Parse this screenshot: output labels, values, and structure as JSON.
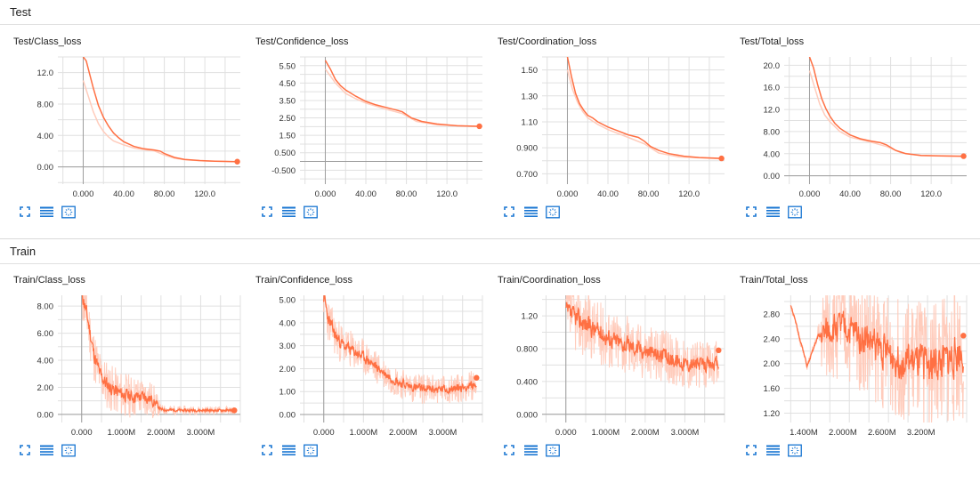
{
  "sections": [
    {
      "title": "Test"
    },
    {
      "title": "Train"
    }
  ],
  "colors": {
    "line": "#ff7043",
    "line_light": "#ffccbc",
    "grid": "#e0e0e0",
    "axis": "#9e9e9e",
    "icon": "#1976d2"
  },
  "toolbar_icons": [
    "fullscreen-icon",
    "data-table-icon",
    "fit-domain-icon"
  ],
  "chart_data": [
    {
      "title": "Test/Class_loss",
      "type": "line",
      "section": "Test",
      "xlim": [
        -25,
        155
      ],
      "ylim": [
        -2.2,
        14.0
      ],
      "xticks": [
        0,
        40,
        80,
        120
      ],
      "xticklabels": [
        "0.000",
        "40.00",
        "80.00",
        "120.0"
      ],
      "yticks": [
        0,
        4,
        8,
        12
      ],
      "yticklabels": [
        "0.00",
        "4.00",
        "8.00",
        "12.0"
      ],
      "smoothed": [
        [
          0,
          14
        ],
        [
          3,
          13.5
        ],
        [
          6,
          12
        ],
        [
          10,
          10
        ],
        [
          15,
          7.8
        ],
        [
          20,
          6.3
        ],
        [
          25,
          5.2
        ],
        [
          30,
          4.3
        ],
        [
          35,
          3.7
        ],
        [
          40,
          3.2
        ],
        [
          50,
          2.6
        ],
        [
          60,
          2.3
        ],
        [
          70,
          2.15
        ],
        [
          76,
          2.0
        ],
        [
          80,
          1.7
        ],
        [
          90,
          1.2
        ],
        [
          100,
          0.95
        ],
        [
          115,
          0.8
        ],
        [
          130,
          0.72
        ],
        [
          145,
          0.68
        ],
        [
          152,
          0.66
        ]
      ],
      "raw": [
        [
          0,
          11
        ],
        [
          5,
          9
        ],
        [
          10,
          7
        ],
        [
          15,
          5.5
        ],
        [
          20,
          4.5
        ],
        [
          25,
          3.8
        ],
        [
          30,
          3.3
        ],
        [
          40,
          2.8
        ],
        [
          50,
          2.4
        ],
        [
          60,
          2.2
        ],
        [
          70,
          2.05
        ],
        [
          80,
          1.5
        ],
        [
          90,
          1.1
        ],
        [
          100,
          0.9
        ],
        [
          120,
          0.75
        ],
        [
          152,
          0.66
        ]
      ],
      "end_point": [
        152,
        0.66
      ]
    },
    {
      "title": "Test/Confidence_loss",
      "type": "line",
      "section": "Test",
      "xlim": [
        -25,
        155
      ],
      "ylim": [
        -1.3,
        6.0
      ],
      "xticks": [
        0,
        40,
        80,
        120
      ],
      "xticklabels": [
        "0.000",
        "40.00",
        "80.00",
        "120.0"
      ],
      "yticks": [
        -0.5,
        0.5,
        1.5,
        2.5,
        3.5,
        4.5,
        5.5
      ],
      "yticklabels": [
        "-0.500",
        "0.500",
        "1.50",
        "2.50",
        "3.50",
        "4.50",
        "5.50"
      ],
      "smoothed": [
        [
          0,
          5.8
        ],
        [
          5,
          5.3
        ],
        [
          10,
          4.7
        ],
        [
          15,
          4.35
        ],
        [
          20,
          4.1
        ],
        [
          30,
          3.75
        ],
        [
          40,
          3.45
        ],
        [
          50,
          3.25
        ],
        [
          60,
          3.1
        ],
        [
          70,
          2.95
        ],
        [
          76,
          2.85
        ],
        [
          85,
          2.5
        ],
        [
          95,
          2.3
        ],
        [
          110,
          2.15
        ],
        [
          130,
          2.05
        ],
        [
          152,
          2.02
        ]
      ],
      "raw": [
        [
          0,
          5.3
        ],
        [
          5,
          4.9
        ],
        [
          10,
          4.5
        ],
        [
          20,
          3.9
        ],
        [
          30,
          3.6
        ],
        [
          40,
          3.35
        ],
        [
          60,
          3.0
        ],
        [
          76,
          2.75
        ],
        [
          90,
          2.3
        ],
        [
          110,
          2.1
        ],
        [
          152,
          2.0
        ]
      ],
      "end_point": [
        152,
        2.02
      ]
    },
    {
      "title": "Test/Coordination_loss",
      "type": "line",
      "section": "Test",
      "xlim": [
        -25,
        155
      ],
      "ylim": [
        0.62,
        1.6
      ],
      "xticks": [
        0,
        40,
        80,
        120
      ],
      "xticklabels": [
        "0.000",
        "40.00",
        "80.00",
        "120.0"
      ],
      "yticks": [
        0.7,
        0.9,
        1.1,
        1.3,
        1.5
      ],
      "yticklabels": [
        "0.700",
        "0.900",
        "1.10",
        "1.30",
        "1.50"
      ],
      "smoothed": [
        [
          0,
          1.6
        ],
        [
          4,
          1.45
        ],
        [
          8,
          1.32
        ],
        [
          12,
          1.24
        ],
        [
          16,
          1.19
        ],
        [
          20,
          1.15
        ],
        [
          25,
          1.13
        ],
        [
          30,
          1.1
        ],
        [
          40,
          1.06
        ],
        [
          50,
          1.03
        ],
        [
          60,
          1.0
        ],
        [
          70,
          0.98
        ],
        [
          76,
          0.95
        ],
        [
          82,
          0.91
        ],
        [
          90,
          0.88
        ],
        [
          100,
          0.855
        ],
        [
          115,
          0.835
        ],
        [
          130,
          0.825
        ],
        [
          145,
          0.82
        ],
        [
          152,
          0.818
        ]
      ],
      "raw": [
        [
          0,
          1.5
        ],
        [
          5,
          1.35
        ],
        [
          10,
          1.25
        ],
        [
          15,
          1.18
        ],
        [
          20,
          1.13
        ],
        [
          30,
          1.08
        ],
        [
          40,
          1.04
        ],
        [
          60,
          0.98
        ],
        [
          76,
          0.93
        ],
        [
          90,
          0.86
        ],
        [
          110,
          0.83
        ],
        [
          152,
          0.815
        ]
      ],
      "end_point": [
        152,
        0.818
      ]
    },
    {
      "title": "Test/Total_loss",
      "type": "line",
      "section": "Test",
      "xlim": [
        -25,
        155
      ],
      "ylim": [
        -1.5,
        21.5
      ],
      "xticks": [
        0,
        40,
        80,
        120
      ],
      "xticklabels": [
        "0.000",
        "40.00",
        "80.00",
        "120.0"
      ],
      "yticks": [
        0,
        4,
        8,
        12,
        16,
        20
      ],
      "yticklabels": [
        "0.00",
        "4.00",
        "8.00",
        "12.0",
        "16.0",
        "20.0"
      ],
      "smoothed": [
        [
          0,
          21.5
        ],
        [
          4,
          19.5
        ],
        [
          8,
          16.5
        ],
        [
          12,
          14
        ],
        [
          16,
          12.2
        ],
        [
          20,
          10.8
        ],
        [
          25,
          9.5
        ],
        [
          30,
          8.6
        ],
        [
          40,
          7.4
        ],
        [
          50,
          6.7
        ],
        [
          60,
          6.3
        ],
        [
          70,
          6.0
        ],
        [
          76,
          5.6
        ],
        [
          85,
          4.6
        ],
        [
          95,
          4.0
        ],
        [
          110,
          3.7
        ],
        [
          130,
          3.6
        ],
        [
          152,
          3.55
        ]
      ],
      "raw": [
        [
          0,
          19
        ],
        [
          5,
          16
        ],
        [
          10,
          13
        ],
        [
          15,
          11
        ],
        [
          20,
          9.8
        ],
        [
          30,
          8.0
        ],
        [
          40,
          7.0
        ],
        [
          60,
          6.1
        ],
        [
          76,
          5.3
        ],
        [
          90,
          4.2
        ],
        [
          110,
          3.65
        ],
        [
          152,
          3.5
        ]
      ],
      "end_point": [
        152,
        3.55
      ]
    },
    {
      "title": "Train/Class_loss",
      "type": "line",
      "section": "Train",
      "xlim": [
        -0.6,
        4.0
      ],
      "ylim": [
        -0.6,
        8.8
      ],
      "xticks": [
        0,
        1,
        2,
        3
      ],
      "xticklabels": [
        "0.000",
        "1.000M",
        "2.000M",
        "3.000M"
      ],
      "yticks": [
        0,
        2,
        4,
        6,
        8
      ],
      "yticklabels": [
        "0.00",
        "2.00",
        "4.00",
        "6.00",
        "8.00"
      ],
      "noisy": true,
      "seed": 11,
      "trend": [
        [
          0.0,
          9
        ],
        [
          0.15,
          7
        ],
        [
          0.3,
          4.5
        ],
        [
          0.45,
          3.0
        ],
        [
          0.6,
          2.3
        ],
        [
          0.8,
          1.8
        ],
        [
          1.0,
          1.5
        ],
        [
          1.3,
          1.3
        ],
        [
          1.6,
          1.3
        ],
        [
          1.8,
          1.0
        ],
        [
          2.0,
          0.35
        ],
        [
          2.5,
          0.3
        ],
        [
          3.0,
          0.3
        ],
        [
          3.5,
          0.3
        ],
        [
          3.85,
          0.3
        ]
      ],
      "noise_amp": [
        [
          0,
          1.5
        ],
        [
          1.8,
          1.0
        ],
        [
          2.0,
          0.25
        ],
        [
          3.85,
          0.2
        ]
      ],
      "end_point": [
        3.85,
        0.3
      ]
    },
    {
      "title": "Train/Confidence_loss",
      "type": "line",
      "section": "Train",
      "xlim": [
        -0.6,
        4.0
      ],
      "ylim": [
        -0.35,
        5.2
      ],
      "xticks": [
        0,
        1,
        2,
        3
      ],
      "xticklabels": [
        "0.000",
        "1.000M",
        "2.000M",
        "3.000M"
      ],
      "yticks": [
        0,
        1,
        2,
        3,
        4,
        5
      ],
      "yticklabels": [
        "0.00",
        "1.00",
        "2.00",
        "3.00",
        "4.00",
        "5.00"
      ],
      "noisy": true,
      "seed": 23,
      "trend": [
        [
          0.0,
          5.2
        ],
        [
          0.1,
          4.2
        ],
        [
          0.3,
          3.4
        ],
        [
          0.5,
          3.0
        ],
        [
          0.8,
          2.7
        ],
        [
          1.0,
          2.5
        ],
        [
          1.3,
          2.1
        ],
        [
          1.6,
          1.7
        ],
        [
          1.9,
          1.4
        ],
        [
          2.2,
          1.2
        ],
        [
          2.6,
          1.1
        ],
        [
          3.0,
          1.1
        ],
        [
          3.4,
          1.15
        ],
        [
          3.85,
          1.3
        ]
      ],
      "noise_amp": [
        [
          0,
          0.7
        ],
        [
          1.5,
          0.5
        ],
        [
          3.85,
          0.45
        ]
      ],
      "end_point": [
        3.85,
        1.6
      ]
    },
    {
      "title": "Train/Coordination_loss",
      "type": "line",
      "section": "Train",
      "xlim": [
        -0.6,
        4.0
      ],
      "ylim": [
        -0.1,
        1.45
      ],
      "xticks": [
        0,
        1,
        2,
        3
      ],
      "xticklabels": [
        "0.000",
        "1.000M",
        "2.000M",
        "3.000M"
      ],
      "yticks": [
        0,
        0.4,
        0.8,
        1.2
      ],
      "yticklabels": [
        "0.000",
        "0.400",
        "0.800",
        "1.20"
      ],
      "noisy": true,
      "seed": 37,
      "trend": [
        [
          0.0,
          1.25
        ],
        [
          0.5,
          1.1
        ],
        [
          1.0,
          0.95
        ],
        [
          1.5,
          0.85
        ],
        [
          2.0,
          0.78
        ],
        [
          2.5,
          0.7
        ],
        [
          3.0,
          0.62
        ],
        [
          3.5,
          0.6
        ],
        [
          3.85,
          0.62
        ]
      ],
      "noise_amp": [
        [
          0,
          0.3
        ],
        [
          3.85,
          0.2
        ]
      ],
      "end_point": [
        3.85,
        0.78
      ]
    },
    {
      "title": "Train/Total_loss",
      "type": "line",
      "section": "Train",
      "xlim": [
        1.1,
        3.9
      ],
      "ylim": [
        1.05,
        3.1
      ],
      "xticks": [
        1.4,
        2.0,
        2.6,
        3.2
      ],
      "xticklabels": [
        "1.400M",
        "2.000M",
        "2.600M",
        "3.200M"
      ],
      "yticks": [
        1.2,
        1.6,
        2.0,
        2.4,
        2.8
      ],
      "yticklabels": [
        "1.20",
        "1.60",
        "2.00",
        "2.40",
        "2.80"
      ],
      "noisy": true,
      "seed": 51,
      "trend": [
        [
          1.2,
          2.95
        ],
        [
          1.45,
          1.95
        ],
        [
          1.6,
          2.4
        ],
        [
          1.9,
          2.6
        ],
        [
          2.2,
          2.5
        ],
        [
          2.5,
          2.3
        ],
        [
          2.8,
          2.1
        ],
        [
          3.1,
          2.0
        ],
        [
          3.5,
          2.0
        ],
        [
          3.85,
          2.2
        ]
      ],
      "noise_amp": [
        [
          1.2,
          0.05
        ],
        [
          1.6,
          0.05
        ],
        [
          1.7,
          0.6
        ],
        [
          3.85,
          0.8
        ]
      ],
      "end_point": [
        3.85,
        2.45
      ]
    }
  ]
}
